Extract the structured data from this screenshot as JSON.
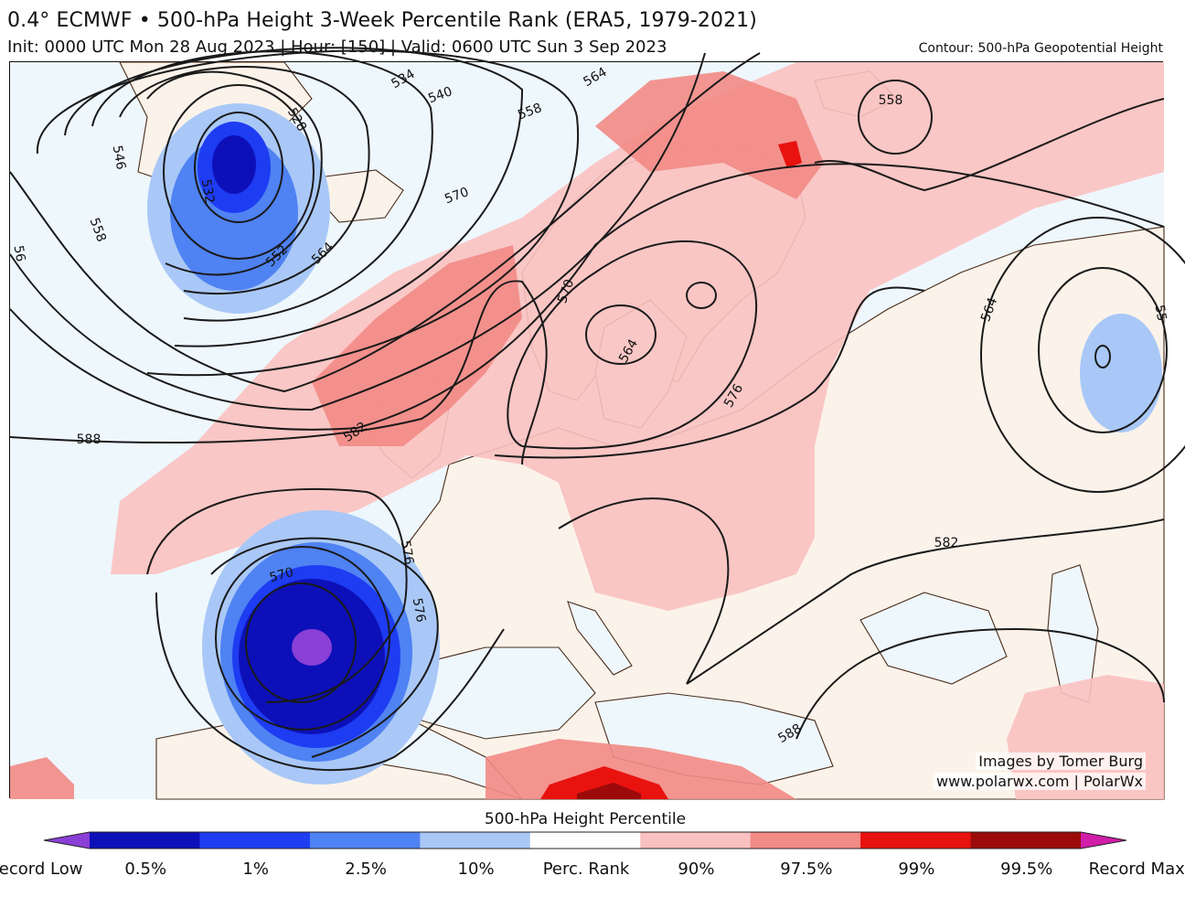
{
  "header": {
    "title": "0.4° ECMWF • 500-hPa Height 3-Week Percentile Rank (ERA5, 1979-2021)",
    "subtitle": "Init: 0000 UTC Mon 28 Aug 2023 | Hour: [150] | Valid: 0600 UTC Sun 3 Sep 2023",
    "contour_note": "Contour: 500-hPa Geopotential Height"
  },
  "map": {
    "contour_labels": [
      "528",
      "534",
      "540",
      "558",
      "564",
      "546",
      "558",
      "532",
      "552",
      "564",
      "570",
      "570",
      "564",
      "576",
      "582",
      "588",
      "570",
      "576",
      "576",
      "588",
      "582",
      "558",
      "564",
      "55",
      "56"
    ]
  },
  "credits": {
    "line1": "Images by Tomer Burg",
    "line2": "www.polarwx.com | PolarWx"
  },
  "colorbar": {
    "title": "500-hPa Height Percentile",
    "labels": [
      "Record Low",
      "0.5%",
      "1%",
      "2.5%",
      "10%",
      "Perc. Rank",
      "90%",
      "97.5%",
      "99%",
      "99.5%",
      "Record Max"
    ],
    "colors": [
      "#8a3fd6",
      "#0d10b8",
      "#1e3cf2",
      "#4f82f2",
      "#a9c8f7",
      "#ffffff",
      "#f9c1c0",
      "#f28a85",
      "#e8120f",
      "#9c0a0a",
      "#d01ea8"
    ]
  },
  "colors": {
    "ocean_neutral": "#eef7fc",
    "land_neutral": "#fbf3ea",
    "coast": "#4a2c1a",
    "contour": "#1a1a1a"
  }
}
